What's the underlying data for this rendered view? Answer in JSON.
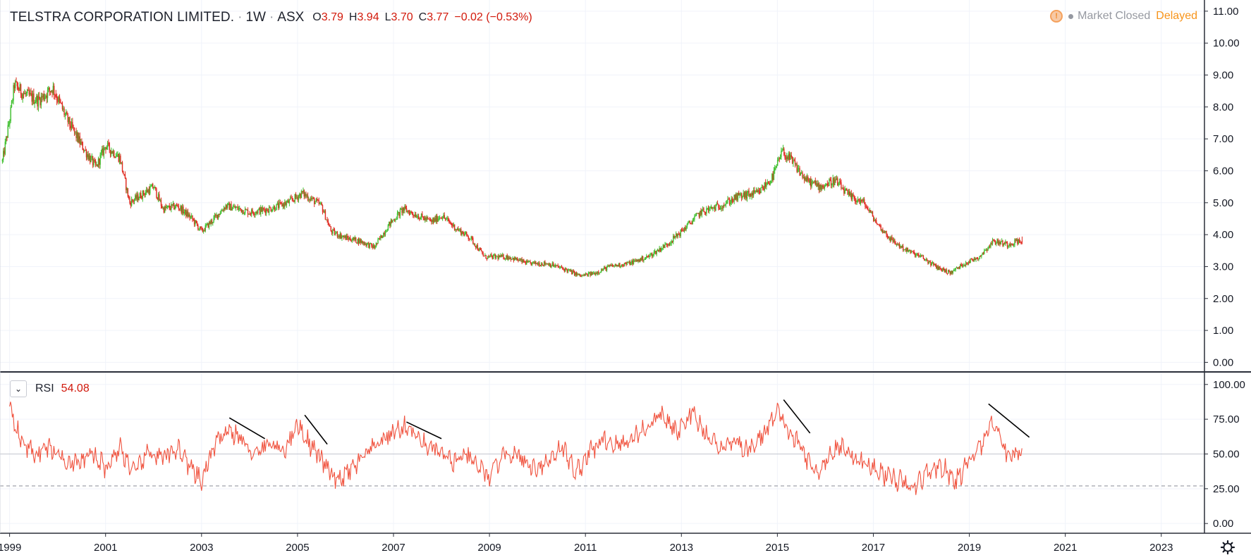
{
  "header": {
    "title": "TELSTRA CORPORATION LIMITED.",
    "interval": "1W",
    "exchange": "ASX",
    "ohlc": [
      {
        "k": "O",
        "v": "3.79"
      },
      {
        "k": "H",
        "v": "3.94"
      },
      {
        "k": "L",
        "v": "3.70"
      },
      {
        "k": "C",
        "v": "3.77"
      }
    ],
    "change": "−0.02 (−0.53%)"
  },
  "status": {
    "clock_glyph": "!",
    "market": "Market Closed",
    "delay": "Delayed"
  },
  "rsi_legend": {
    "toggle_glyph": "⌄",
    "name": "RSI",
    "value": "54.08"
  },
  "colors": {
    "up": "#3fbf2e",
    "down": "#e02a20",
    "rsi_line": "#f0533f",
    "divergence_line": "#000000",
    "axis_text": "#131722",
    "grid": "#f0f3fa"
  },
  "chart_data": [
    {
      "type": "candlestick",
      "title": "TELSTRA CORPORATION LIMITED. · 1W · ASX",
      "interval": "weekly",
      "x_ticks": [
        "1999",
        "2001",
        "2003",
        "2005",
        "2007",
        "2009",
        "2011",
        "2013",
        "2015",
        "2017",
        "2019",
        "2021",
        "2023"
      ],
      "x_range": [
        1998.8,
        2023.9
      ],
      "ylim": [
        -0.3,
        11.35
      ],
      "y_ticks": [
        "0.00",
        "1.00",
        "2.00",
        "3.00",
        "4.00",
        "5.00",
        "6.00",
        "7.00",
        "8.00",
        "9.00",
        "10.00",
        "11.00"
      ],
      "last_candle": {
        "open": 3.79,
        "high": 3.94,
        "low": 3.7,
        "close": 3.77
      },
      "price_path_approx": {
        "x": [
          1998.85,
          1999.0,
          1999.1,
          1999.3,
          1999.6,
          1999.9,
          2000.2,
          2000.5,
          2000.8,
          2001.0,
          2001.3,
          2001.5,
          2001.7,
          2002.0,
          2002.2,
          2002.5,
          2002.8,
          2003.0,
          2003.2,
          2003.5,
          2003.8,
          2004.0,
          2004.4,
          2004.8,
          2005.1,
          2005.5,
          2005.7,
          2006.0,
          2006.3,
          2006.6,
          2006.9,
          2007.2,
          2007.5,
          2007.8,
          2008.0,
          2008.3,
          2008.6,
          2008.9,
          2009.1,
          2009.4,
          2009.8,
          2010.2,
          2010.6,
          2010.9,
          2011.2,
          2011.5,
          2011.9,
          2012.3,
          2012.7,
          2013.0,
          2013.4,
          2013.8,
          2014.2,
          2014.6,
          2014.9,
          2015.1,
          2015.3,
          2015.6,
          2015.9,
          2016.2,
          2016.5,
          2016.8,
          2017.1,
          2017.4,
          2017.7,
          2018.0,
          2018.3,
          2018.6,
          2018.9,
          2019.2,
          2019.5,
          2019.8,
          2020.0,
          2020.1
        ],
        "y": [
          6.3,
          7.6,
          8.7,
          8.4,
          8.2,
          8.6,
          7.6,
          6.8,
          6.1,
          6.8,
          6.4,
          5.0,
          5.2,
          5.5,
          4.8,
          4.9,
          4.5,
          4.1,
          4.4,
          4.9,
          4.8,
          4.7,
          4.8,
          5.0,
          5.3,
          4.9,
          4.1,
          3.9,
          3.8,
          3.6,
          4.3,
          4.8,
          4.6,
          4.4,
          4.6,
          4.2,
          3.9,
          3.3,
          3.3,
          3.3,
          3.1,
          3.1,
          2.9,
          2.7,
          2.8,
          3.0,
          3.1,
          3.3,
          3.7,
          4.1,
          4.7,
          4.9,
          5.2,
          5.3,
          5.8,
          6.6,
          6.3,
          5.7,
          5.5,
          5.7,
          5.2,
          5.0,
          4.3,
          3.8,
          3.5,
          3.3,
          3.0,
          2.8,
          3.1,
          3.3,
          3.8,
          3.7,
          3.8,
          3.77
        ]
      }
    },
    {
      "type": "line",
      "name": "RSI",
      "last_value": 54.08,
      "ylim": [
        -7,
        108
      ],
      "y_ticks": [
        "0.00",
        "25.00",
        "50.00",
        "75.00",
        "100.00"
      ],
      "reference_lines": [
        {
          "value": 50,
          "style": "solid"
        },
        {
          "value": 27,
          "style": "dashed"
        }
      ],
      "rsi_path_approx": {
        "x": [
          1999.0,
          1999.2,
          1999.5,
          1999.8,
          2000.1,
          2000.4,
          2000.7,
          2001.0,
          2001.3,
          2001.6,
          2001.9,
          2002.2,
          2002.5,
          2002.8,
          2003.0,
          2003.2,
          2003.5,
          2003.8,
          2004.1,
          2004.4,
          2004.7,
          2005.0,
          2005.2,
          2005.5,
          2005.8,
          2006.1,
          2006.4,
          2006.7,
          2007.0,
          2007.3,
          2007.6,
          2007.9,
          2008.2,
          2008.5,
          2008.8,
          2009.0,
          2009.3,
          2009.6,
          2009.9,
          2010.2,
          2010.5,
          2010.8,
          2011.1,
          2011.4,
          2011.7,
          2012.0,
          2012.3,
          2012.6,
          2012.9,
          2013.2,
          2013.5,
          2013.8,
          2014.1,
          2014.4,
          2014.7,
          2015.0,
          2015.2,
          2015.5,
          2015.8,
          2016.1,
          2016.4,
          2016.7,
          2017.0,
          2017.3,
          2017.6,
          2017.8,
          2018.1,
          2018.4,
          2018.7,
          2019.0,
          2019.3,
          2019.5,
          2019.8,
          2020.1
        ],
        "y": [
          88,
          62,
          50,
          55,
          48,
          42,
          50,
          40,
          55,
          35,
          52,
          46,
          55,
          38,
          30,
          50,
          68,
          62,
          48,
          58,
          52,
          72,
          60,
          46,
          30,
          38,
          48,
          58,
          66,
          70,
          58,
          52,
          44,
          48,
          40,
          32,
          52,
          48,
          40,
          44,
          56,
          36,
          52,
          60,
          56,
          62,
          70,
          78,
          64,
          80,
          66,
          54,
          58,
          52,
          64,
          80,
          68,
          54,
          36,
          50,
          56,
          44,
          40,
          34,
          30,
          24,
          36,
          42,
          30,
          44,
          60,
          76,
          48,
          54
        ]
      }
    }
  ],
  "divergence_lines": [
    {
      "x1": 2003.58,
      "y1": 76,
      "x2": 2004.32,
      "y2": 61
    },
    {
      "x1": 2005.15,
      "y1": 78,
      "x2": 2005.62,
      "y2": 57
    },
    {
      "x1": 2007.27,
      "y1": 73,
      "x2": 2008.0,
      "y2": 61
    },
    {
      "x1": 2015.13,
      "y1": 89,
      "x2": 2015.68,
      "y2": 65
    },
    {
      "x1": 2019.4,
      "y1": 86,
      "x2": 2020.25,
      "y2": 62
    }
  ]
}
